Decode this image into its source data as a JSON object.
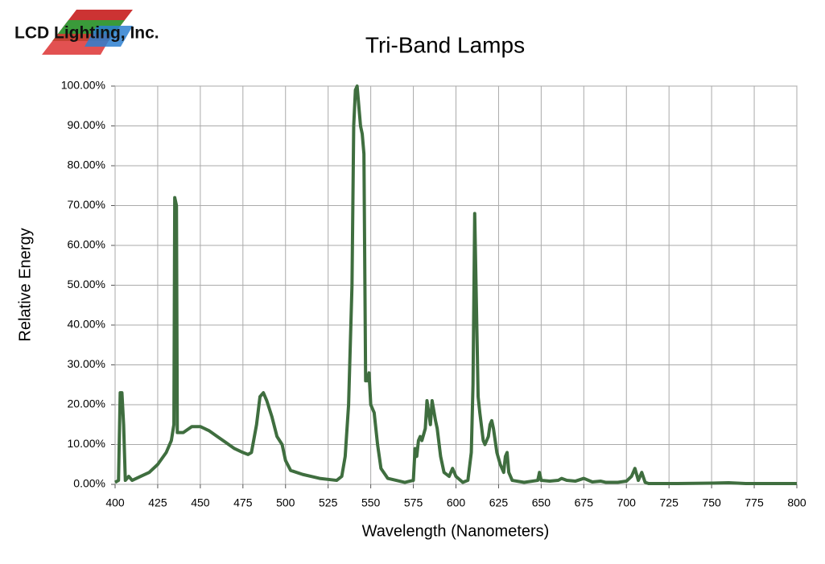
{
  "chart_data": {
    "type": "line",
    "logo": "LCD Lighting, Inc.",
    "title": "Tri-Band Lamps",
    "x_label": "Wavelength (Nanometers)",
    "y_label": "Relative Energy",
    "xlim": [
      400,
      800
    ],
    "ylim": [
      0,
      100
    ],
    "grid": true,
    "xticks": [
      400,
      425,
      450,
      475,
      500,
      525,
      550,
      575,
      600,
      625,
      650,
      675,
      700,
      725,
      750,
      775,
      800
    ],
    "yticks": [
      {
        "value": 0,
        "label": "0.00%"
      },
      {
        "value": 10,
        "label": "10.00%"
      },
      {
        "value": 20,
        "label": "20.00%"
      },
      {
        "value": 30,
        "label": "30.00%"
      },
      {
        "value": 40,
        "label": "40.00%"
      },
      {
        "value": 50,
        "label": "50.00%"
      },
      {
        "value": 60,
        "label": "60.00%"
      },
      {
        "value": 70,
        "label": "70.00%"
      },
      {
        "value": 80,
        "label": "80.00%"
      },
      {
        "value": 90,
        "label": "90.00%"
      },
      {
        "value": 100,
        "label": "100.00%"
      }
    ],
    "color": "#3f6e3f",
    "x": [
      400,
      402,
      403,
      404,
      405,
      406,
      408,
      410,
      415,
      420,
      425,
      430,
      433,
      434.5,
      435,
      436,
      436.5,
      440,
      445,
      450,
      455,
      460,
      465,
      470,
      475,
      478,
      480,
      483,
      485,
      487,
      489,
      492,
      495,
      498,
      500,
      503,
      510,
      520,
      530,
      533,
      535,
      537,
      539,
      540,
      541,
      542,
      543,
      544,
      545,
      546,
      547,
      548,
      549,
      550,
      552,
      554,
      556,
      560,
      570,
      575,
      576,
      577,
      578,
      579,
      580,
      582,
      583,
      584,
      585,
      586,
      588,
      589,
      591,
      593,
      596,
      598,
      600,
      604,
      607,
      609,
      610,
      611,
      612,
      613,
      614,
      616,
      617,
      619,
      620,
      621,
      622,
      624,
      626,
      628,
      629,
      630,
      631,
      633,
      640,
      648,
      649,
      650,
      655,
      660,
      662,
      665,
      670,
      675,
      680,
      685,
      688,
      695,
      700,
      703,
      705,
      707,
      709,
      711,
      713,
      715,
      730,
      750,
      760,
      770,
      800
    ],
    "values": [
      0.5,
      1,
      23,
      23,
      15,
      1,
      2,
      1,
      2,
      3,
      5,
      8,
      11,
      15,
      72,
      70,
      13,
      13,
      14.5,
      14.5,
      13.5,
      12,
      10.5,
      9,
      8,
      7.5,
      8,
      15,
      22,
      23,
      21,
      17,
      12,
      10,
      6,
      3.5,
      2.5,
      1.5,
      1,
      2,
      7,
      20,
      50,
      90,
      99,
      100,
      95,
      90,
      88,
      83,
      26,
      26,
      28,
      20,
      18,
      10,
      4,
      1.5,
      0.5,
      1,
      9,
      7,
      11,
      12,
      11,
      14,
      21,
      18,
      15,
      21,
      16,
      14,
      7,
      3,
      2,
      4,
      2,
      0.5,
      1,
      8,
      25,
      68,
      45,
      22,
      18,
      11,
      10,
      12,
      15,
      16,
      14,
      8,
      5,
      3,
      7,
      8,
      3,
      1,
      0.5,
      1,
      3,
      1,
      0.8,
      1,
      1.5,
      1,
      0.8,
      1.5,
      0.6,
      0.8,
      0.5,
      0.5,
      0.8,
      2,
      4,
      1,
      3,
      0.5,
      0.2,
      0.2,
      0.2,
      0.3,
      0.4,
      0.2,
      0.2
    ]
  }
}
